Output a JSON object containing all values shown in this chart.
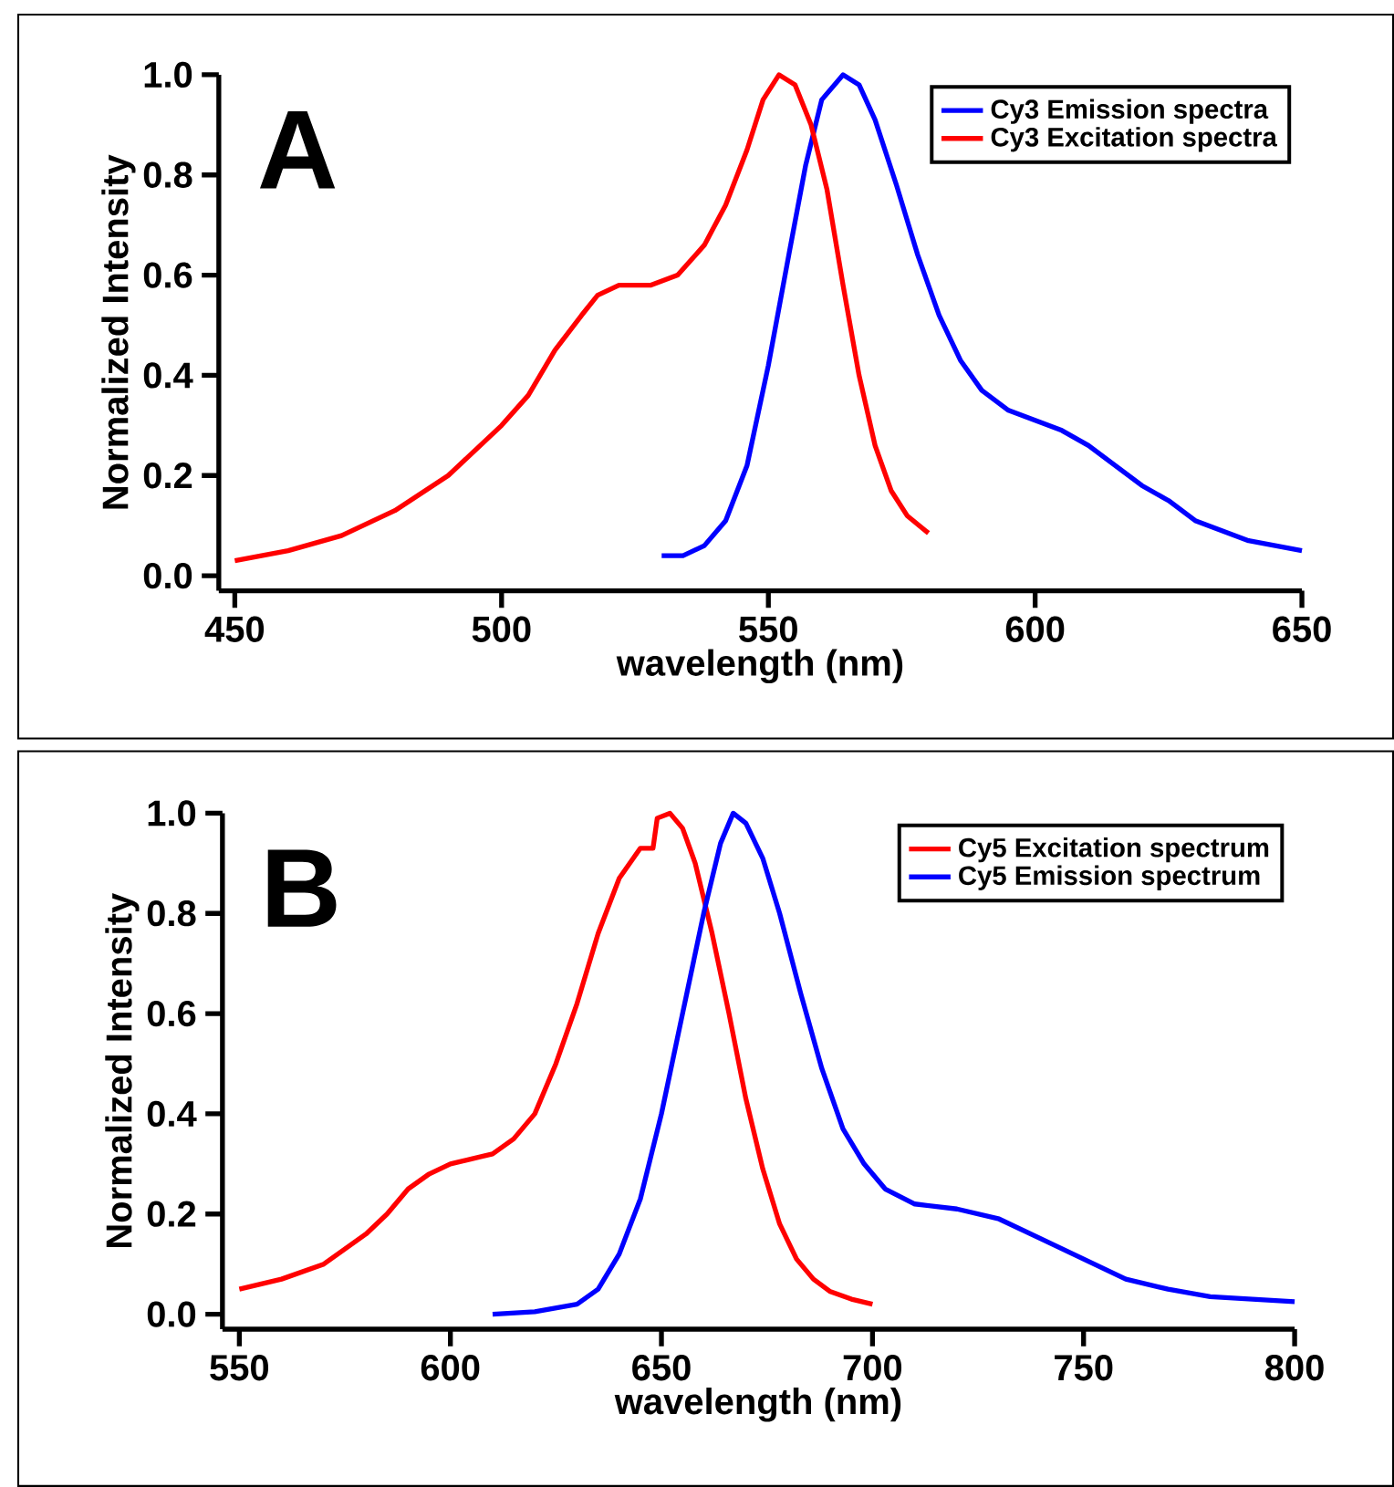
{
  "chart_data": [
    {
      "type": "line",
      "xlabel": "wavelength (nm)",
      "ylabel": "Normalized Intensity",
      "annotations": [
        "A"
      ],
      "legend": "top right",
      "line_style": "solid",
      "xlim": [
        447,
        650
      ],
      "ylim": [
        -0.03,
        1.0
      ],
      "xticks": [
        450,
        500,
        550,
        600,
        650
      ],
      "yticks": [
        {
          "value": 0,
          "label": "0.0"
        },
        {
          "value": 0.2,
          "label": "0.2"
        },
        {
          "value": 0.4,
          "label": "0.4"
        },
        {
          "value": 0.6,
          "label": "0.6"
        },
        {
          "value": 0.8,
          "label": "0.8"
        },
        {
          "value": 1.0,
          "label": "1.0"
        }
      ],
      "series": [
        {
          "name": "Cy3 Emission spectra",
          "color": "#0000ff",
          "x": [
            530,
            534,
            538,
            542,
            546,
            550,
            554,
            557,
            560,
            564,
            567,
            570,
            574,
            578,
            582,
            586,
            590,
            595,
            600,
            605,
            610,
            615,
            620,
            625,
            630,
            635,
            640,
            645,
            650
          ],
          "values": [
            0.04,
            0.04,
            0.06,
            0.11,
            0.22,
            0.42,
            0.65,
            0.82,
            0.95,
            1.0,
            0.98,
            0.91,
            0.78,
            0.64,
            0.52,
            0.43,
            0.37,
            0.33,
            0.31,
            0.29,
            0.26,
            0.22,
            0.18,
            0.15,
            0.11,
            0.09,
            0.07,
            0.06,
            0.05
          ]
        },
        {
          "name": "Cy3 Excitation spectra",
          "color": "#ff0000",
          "x": [
            450,
            460,
            470,
            480,
            490,
            500,
            505,
            510,
            515,
            518,
            522,
            528,
            533,
            538,
            542,
            546,
            549,
            552,
            555,
            558,
            561,
            564,
            567,
            570,
            573,
            576,
            580
          ],
          "values": [
            0.03,
            0.05,
            0.08,
            0.13,
            0.2,
            0.3,
            0.36,
            0.45,
            0.52,
            0.56,
            0.58,
            0.58,
            0.6,
            0.66,
            0.74,
            0.85,
            0.95,
            1.0,
            0.98,
            0.9,
            0.77,
            0.58,
            0.4,
            0.26,
            0.17,
            0.12,
            0.085
          ]
        }
      ]
    },
    {
      "type": "line",
      "xlabel": "wavelength (nm)",
      "ylabel": "Normalized Intensity",
      "annotations": [
        "B"
      ],
      "legend": "top right",
      "line_style": "solid",
      "xlim": [
        546,
        800
      ],
      "ylim": [
        -0.03,
        1.0
      ],
      "xticks": [
        550,
        600,
        650,
        700,
        750,
        800
      ],
      "yticks": [
        {
          "value": 0,
          "label": "0.0"
        },
        {
          "value": 0.2,
          "label": "0.2"
        },
        {
          "value": 0.4,
          "label": "0.4"
        },
        {
          "value": 0.6,
          "label": "0.6"
        },
        {
          "value": 0.8,
          "label": "0.8"
        },
        {
          "value": 1.0,
          "label": "1.0"
        }
      ],
      "series": [
        {
          "name": "Cy5 Excitation spectrum",
          "color": "#ff0000",
          "x": [
            550,
            560,
            570,
            575,
            580,
            585,
            590,
            595,
            600,
            605,
            610,
            615,
            620,
            625,
            630,
            635,
            640,
            645,
            648,
            649,
            652,
            655,
            658,
            662,
            666,
            670,
            674,
            678,
            682,
            686,
            690,
            695,
            700
          ],
          "values": [
            0.05,
            0.07,
            0.1,
            0.13,
            0.16,
            0.2,
            0.25,
            0.28,
            0.3,
            0.31,
            0.32,
            0.35,
            0.4,
            0.5,
            0.62,
            0.76,
            0.87,
            0.93,
            0.93,
            0.99,
            1.0,
            0.97,
            0.9,
            0.76,
            0.6,
            0.43,
            0.29,
            0.18,
            0.11,
            0.07,
            0.045,
            0.03,
            0.02
          ]
        },
        {
          "name": "Cy5 Emission spectrum",
          "color": "#0000ff",
          "x": [
            610,
            620,
            630,
            635,
            640,
            645,
            650,
            655,
            660,
            664,
            667,
            670,
            674,
            678,
            683,
            688,
            693,
            698,
            703,
            710,
            720,
            730,
            740,
            750,
            760,
            770,
            780,
            790,
            800
          ],
          "values": [
            0.0,
            0.005,
            0.02,
            0.05,
            0.12,
            0.23,
            0.4,
            0.6,
            0.8,
            0.94,
            1.0,
            0.98,
            0.91,
            0.8,
            0.64,
            0.49,
            0.37,
            0.3,
            0.25,
            0.22,
            0.21,
            0.19,
            0.15,
            0.11,
            0.07,
            0.05,
            0.035,
            0.03,
            0.025
          ]
        }
      ]
    }
  ]
}
